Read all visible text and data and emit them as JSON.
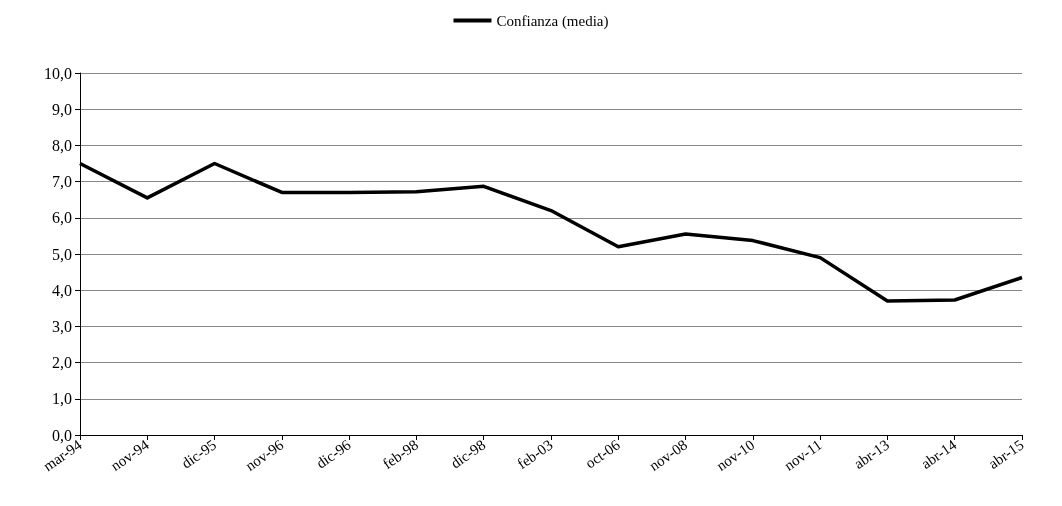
{
  "chart_data": {
    "type": "line",
    "categories": [
      "mar-94",
      "nov-94",
      "dic-95",
      "nov-96",
      "dic-96",
      "feb-98",
      "dic-98",
      "feb-03",
      "oct-06",
      "nov-08",
      "nov-10",
      "nov-11",
      "abr-13",
      "abr-14",
      "abr-15"
    ],
    "series": [
      {
        "name": "Confianza (media)",
        "color": "#000000",
        "values": [
          7.5,
          6.55,
          7.5,
          6.7,
          6.7,
          6.72,
          6.87,
          6.2,
          5.2,
          5.55,
          5.37,
          4.9,
          3.7,
          3.73,
          4.35
        ]
      }
    ],
    "ylim": [
      0,
      10
    ],
    "yticks": [
      {
        "value": 0,
        "label": "0,0"
      },
      {
        "value": 1,
        "label": "1,0"
      },
      {
        "value": 2,
        "label": "2,0"
      },
      {
        "value": 3,
        "label": "3,0"
      },
      {
        "value": 4,
        "label": "4,0"
      },
      {
        "value": 5,
        "label": "5,0"
      },
      {
        "value": 6,
        "label": "6,0"
      },
      {
        "value": 7,
        "label": "7,0"
      },
      {
        "value": 8,
        "label": "8,0"
      },
      {
        "value": 9,
        "label": "9,0"
      },
      {
        "value": 10,
        "label": "10,0"
      }
    ],
    "grid": "y",
    "legend": "top",
    "marker": "none",
    "line_style": "solid"
  }
}
